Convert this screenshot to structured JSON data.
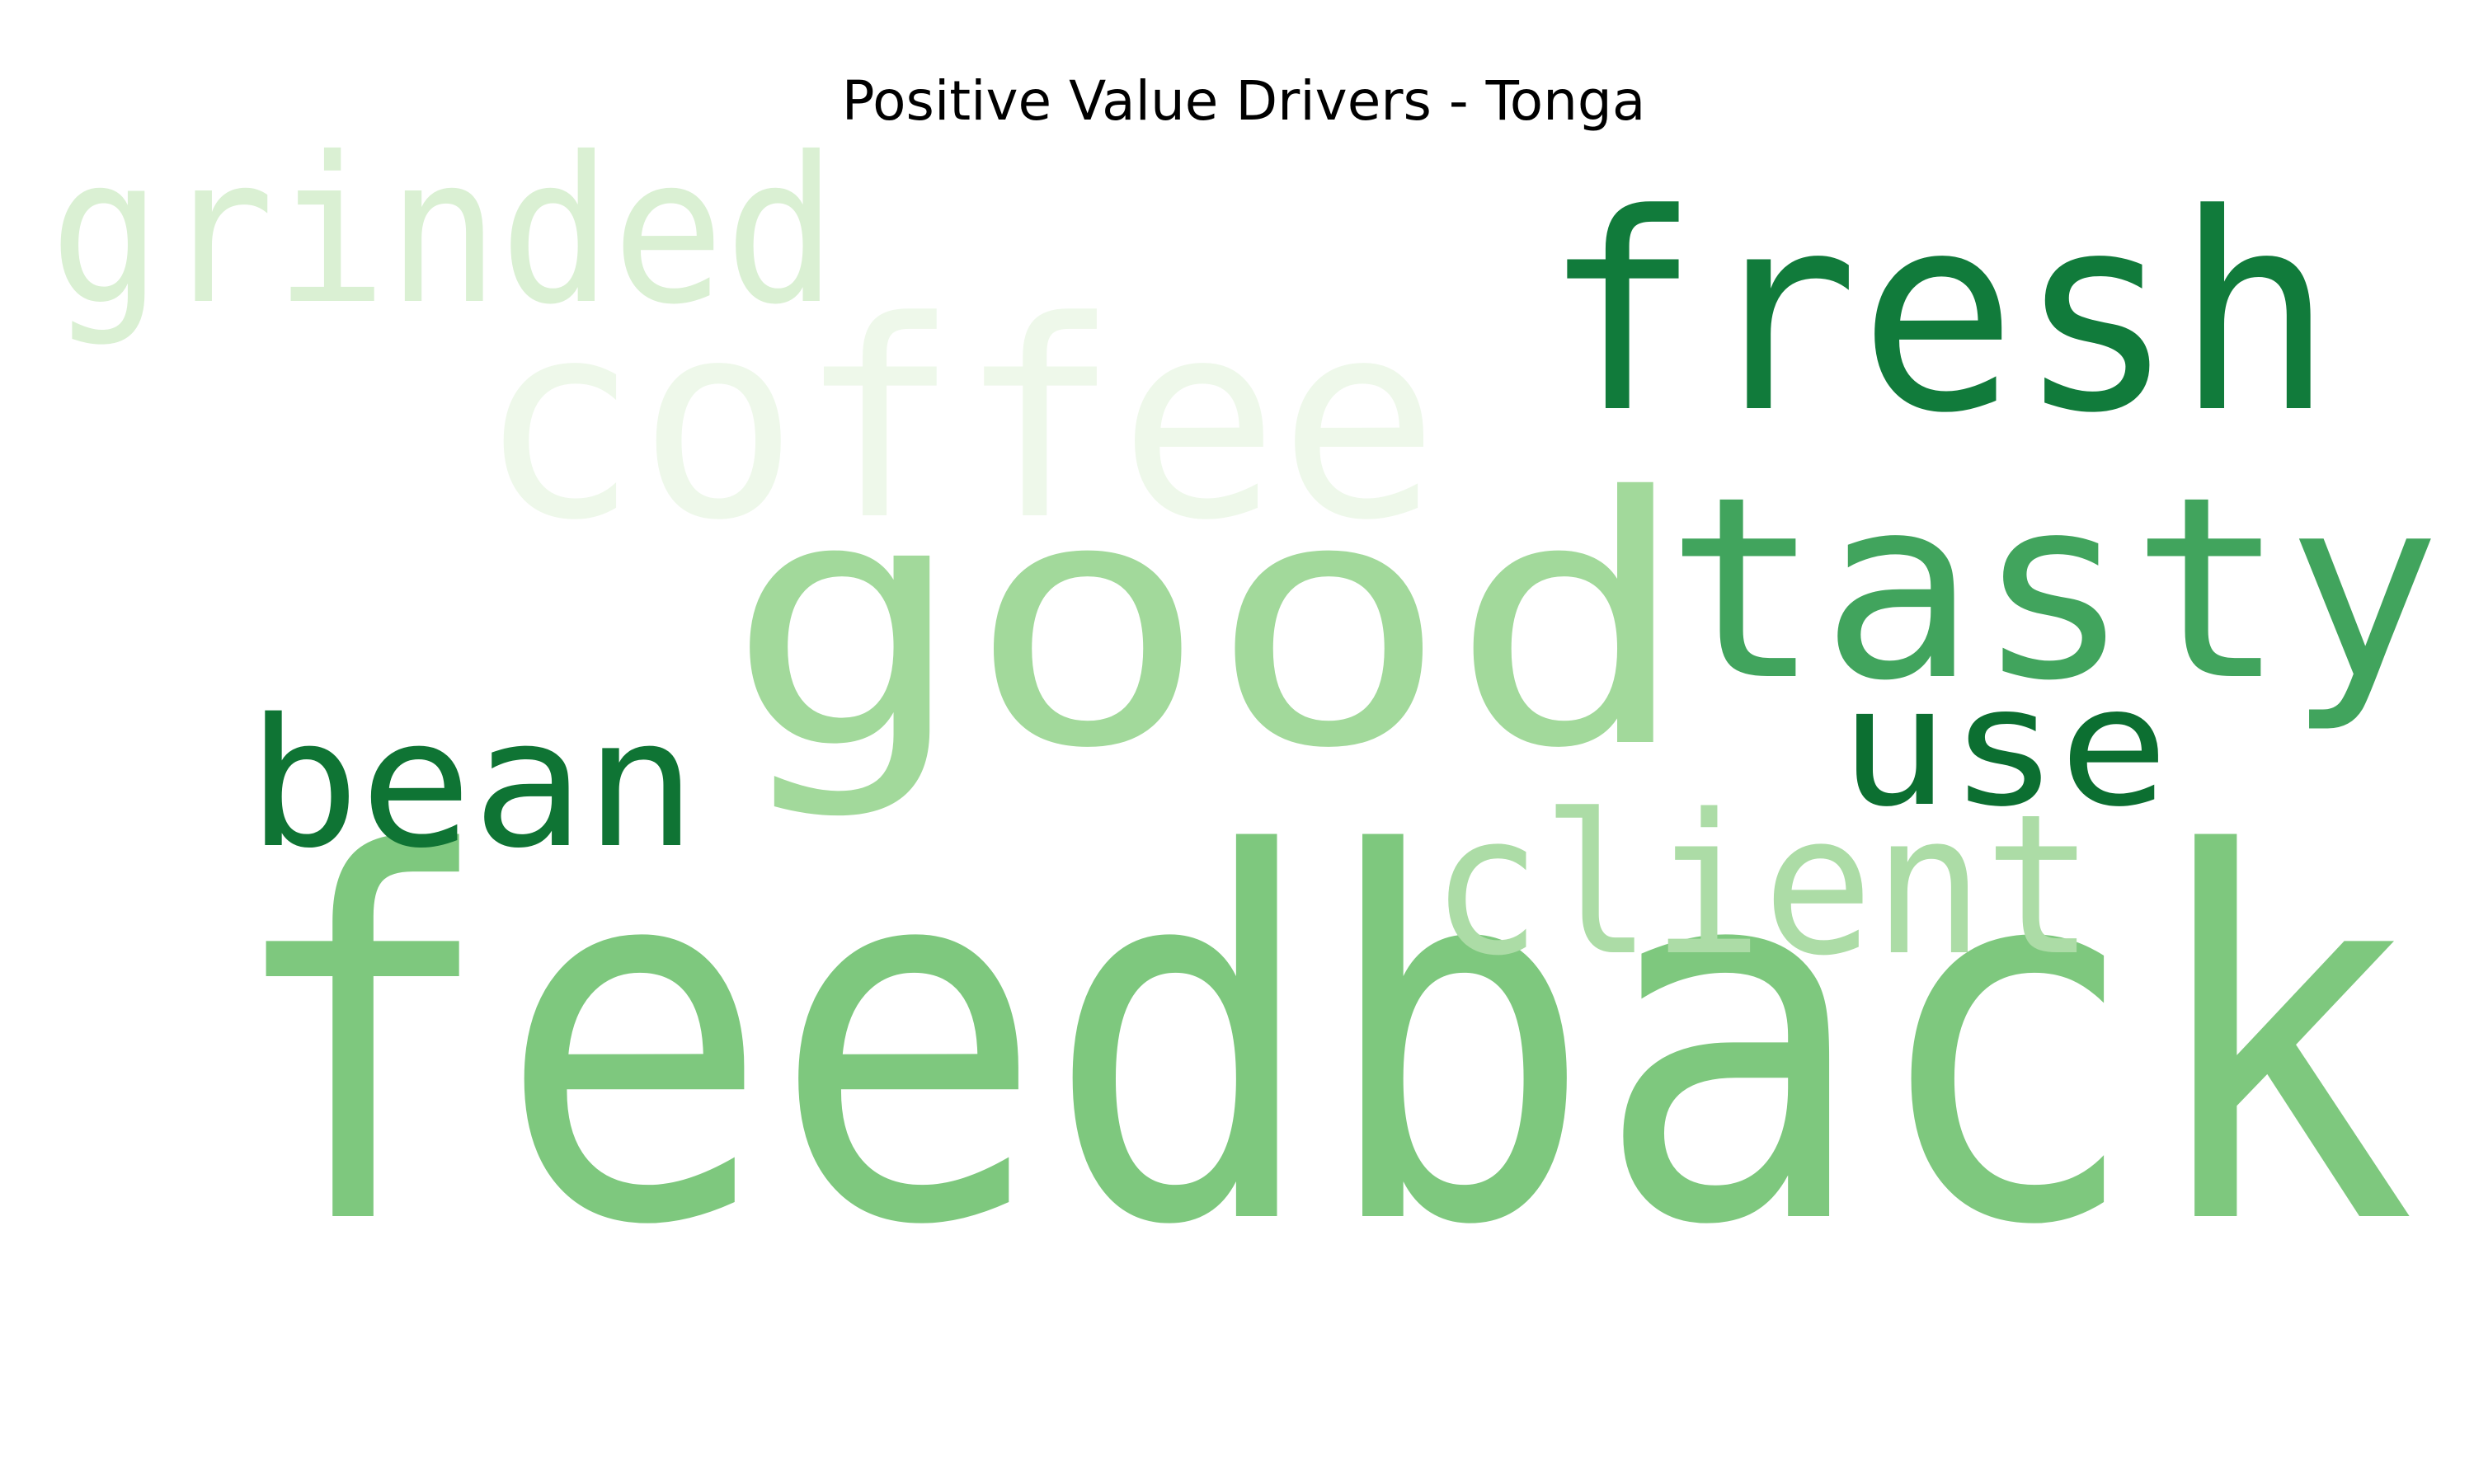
{
  "chart_data": {
    "type": "wordcloud",
    "title": "Positive Value Drivers - Tonga",
    "words": [
      {
        "text": "feedback",
        "color": "#7ec87e"
      },
      {
        "text": "good",
        "color": "#a2d99b"
      },
      {
        "text": "tasty",
        "color": "#41a45d"
      },
      {
        "text": "fresh",
        "color": "#117b3b"
      },
      {
        "text": "coffee",
        "color": "#eef8ea"
      },
      {
        "text": "bean",
        "color": "#0f7434"
      },
      {
        "text": "use",
        "color": "#0c6f31"
      },
      {
        "text": "client",
        "color": "#acdca6"
      },
      {
        "text": "grinded",
        "color": "#daf0d3"
      }
    ]
  }
}
